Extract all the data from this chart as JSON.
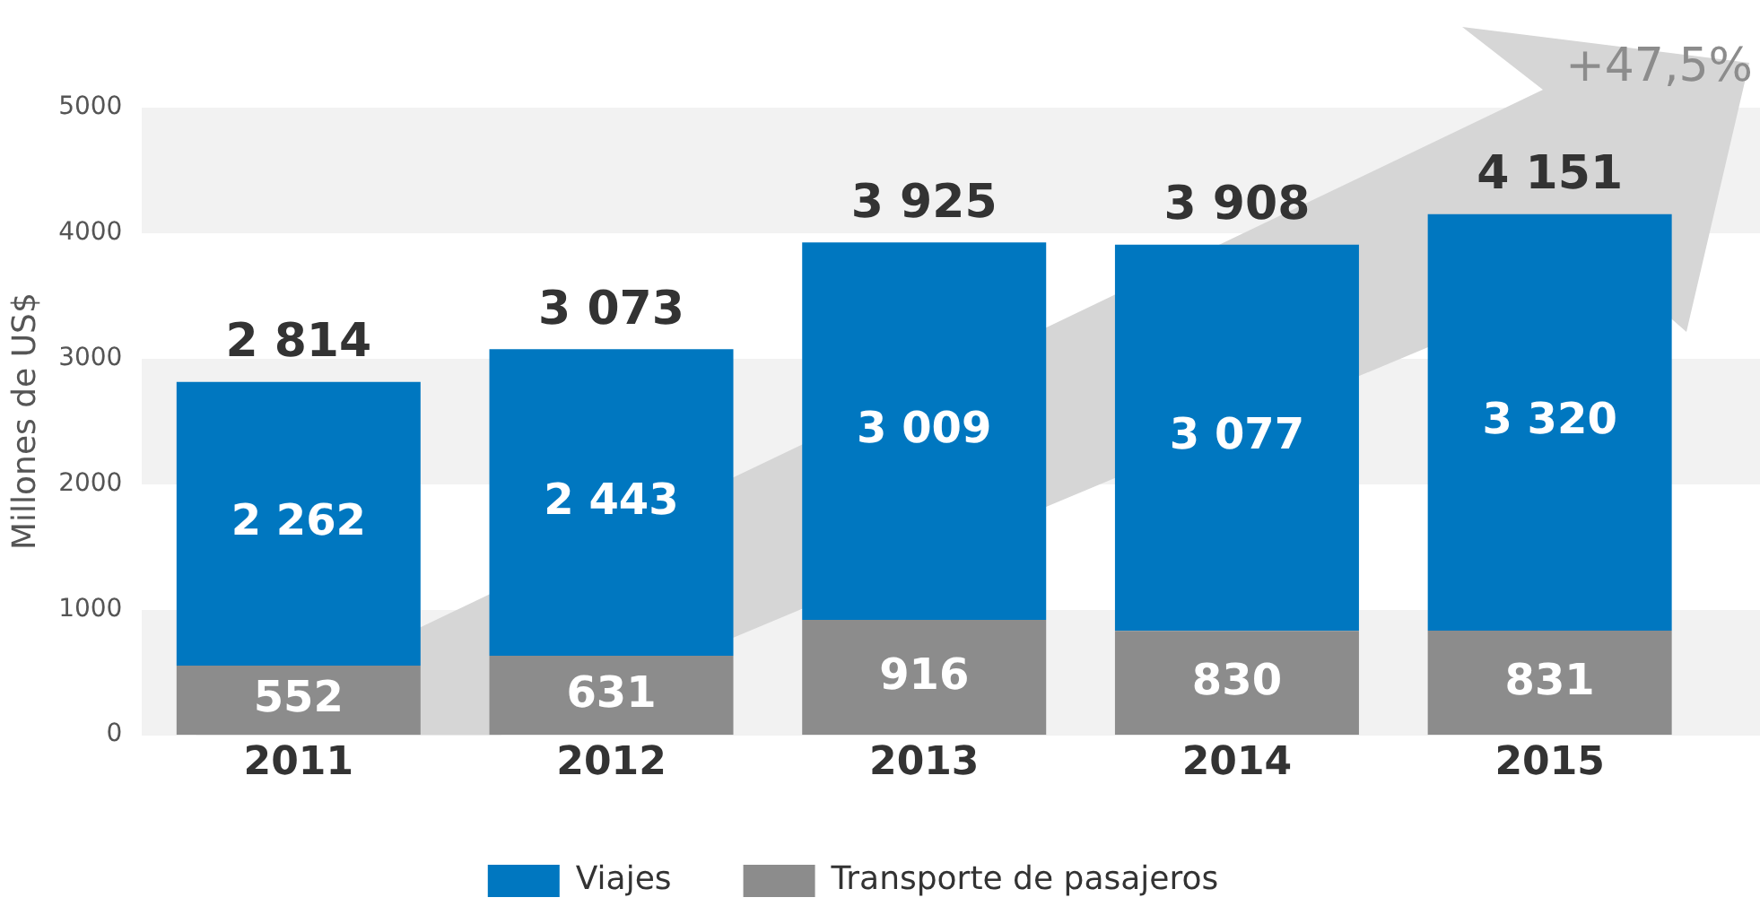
{
  "chart_data": {
    "type": "bar",
    "stacked": true,
    "ylabel": "Millones de US$",
    "categories": [
      "2011",
      "2012",
      "2013",
      "2014",
      "2015"
    ],
    "series": [
      {
        "name": "Transporte de pasajeros",
        "color": "#8c8c8c",
        "values": [
          552,
          631,
          916,
          830,
          831
        ],
        "value_labels": [
          "552",
          "631",
          "916",
          "830",
          "831"
        ]
      },
      {
        "name": "Viajes",
        "color": "#0077c0",
        "values": [
          2262,
          2443,
          3009,
          3077,
          3320
        ],
        "value_labels": [
          "2 262",
          "2 443",
          "3 009",
          "3 077",
          "3 320"
        ]
      }
    ],
    "totals": [
      "2 814",
      "3 073",
      "3 925",
      "3 908",
      "4 151"
    ],
    "ylim": [
      0,
      5000
    ],
    "yticks": [
      0,
      1000,
      2000,
      3000,
      4000,
      5000
    ],
    "legend": "bottom",
    "annotations": [
      "+47,5%"
    ]
  }
}
